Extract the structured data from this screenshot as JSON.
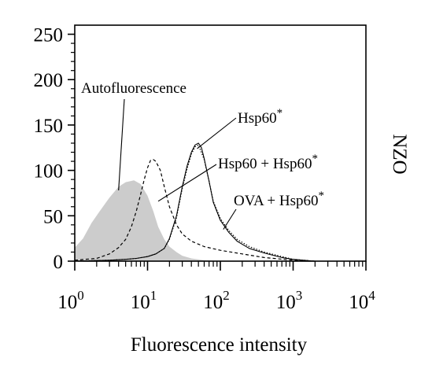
{
  "chart_data": {
    "type": "area",
    "title": "",
    "xlabel": "Fluorescence intensity",
    "ylabel": "",
    "side_label": "NZO",
    "x_scale": "log",
    "xlim": [
      1,
      10000
    ],
    "ylim": [
      0,
      260
    ],
    "x_ticks": [
      {
        "value": 1,
        "base": "10",
        "exp": "0"
      },
      {
        "value": 10,
        "base": "10",
        "exp": "1"
      },
      {
        "value": 100,
        "base": "10",
        "exp": "2"
      },
      {
        "value": 1000,
        "base": "10",
        "exp": "3"
      },
      {
        "value": 10000,
        "base": "10",
        "exp": "4"
      }
    ],
    "y_ticks": [
      0,
      50,
      100,
      150,
      200,
      250
    ],
    "grid": false,
    "series": [
      {
        "name": "Autofluorescence",
        "style": "filled",
        "color": "#cccccc",
        "x": [
          1,
          1.3,
          1.7,
          2.2,
          3,
          4,
          5,
          6.5,
          8,
          10,
          12,
          14,
          17,
          20,
          25,
          30,
          40,
          60,
          100
        ],
        "y": [
          15,
          25,
          42,
          55,
          70,
          82,
          87,
          89,
          85,
          72,
          55,
          38,
          24,
          16,
          10,
          6,
          3,
          1,
          0
        ]
      },
      {
        "name": "Hsp60 + Hsp60*",
        "style": "dashed",
        "color": "#000000",
        "x": [
          1,
          2,
          3,
          4,
          5,
          6,
          7,
          8,
          9,
          10,
          11,
          12,
          13,
          15,
          17,
          20,
          25,
          30,
          40,
          60,
          100,
          200,
          400,
          1000,
          2000
        ],
        "y": [
          1,
          3,
          8,
          15,
          24,
          38,
          55,
          73,
          90,
          103,
          111,
          112,
          110,
          100,
          82,
          60,
          40,
          30,
          22,
          16,
          12,
          8,
          4,
          1,
          0
        ]
      },
      {
        "name": "Hsp60*",
        "style": "solid",
        "color": "#000000",
        "x": [
          1,
          3,
          5,
          7,
          10,
          13,
          17,
          20,
          25,
          30,
          35,
          40,
          45,
          50,
          55,
          60,
          70,
          80,
          100,
          130,
          170,
          250,
          400,
          700,
          1000,
          2000
        ],
        "y": [
          0,
          1,
          2,
          3,
          5,
          8,
          14,
          25,
          50,
          82,
          105,
          120,
          128,
          130,
          125,
          113,
          88,
          65,
          45,
          32,
          22,
          14,
          9,
          4,
          2,
          0
        ]
      },
      {
        "name": "OVA + Hsp60*",
        "style": "dotted",
        "color": "#000000",
        "x": [
          1,
          3,
          5,
          7,
          10,
          13,
          17,
          20,
          25,
          30,
          35,
          40,
          45,
          50,
          60,
          70,
          80,
          100,
          130,
          170,
          250,
          400,
          700,
          1000,
          2000
        ],
        "y": [
          0,
          1,
          2,
          3,
          5,
          8,
          14,
          24,
          48,
          80,
          102,
          118,
          126,
          128,
          112,
          88,
          66,
          47,
          34,
          24,
          16,
          10,
          5,
          2,
          0
        ]
      }
    ],
    "annotations": [
      {
        "text": "Autofluorescence",
        "sup": "",
        "target_x": 4,
        "target_y": 78
      },
      {
        "text": "Hsp60",
        "sup": "*",
        "target_x": 48,
        "target_y": 124
      },
      {
        "text": "Hsp60 + Hsp60",
        "sup": "*",
        "target_x": 14,
        "target_y": 66
      },
      {
        "text": "OVA + Hsp60",
        "sup": "*",
        "target_x": 110,
        "target_y": 35
      }
    ]
  }
}
